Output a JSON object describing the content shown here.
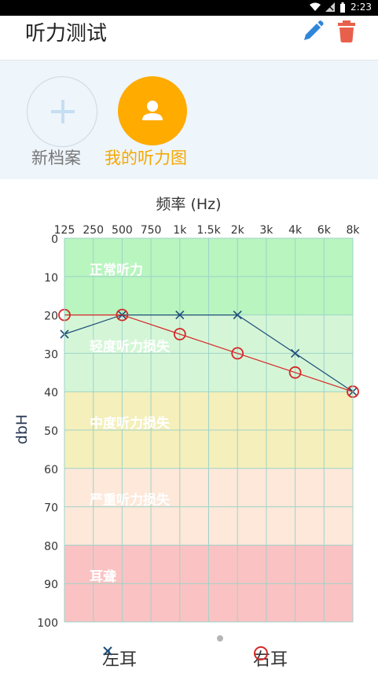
{
  "status": {
    "time": "2:23"
  },
  "header": {
    "title": "听力测试"
  },
  "profiles": {
    "new_label": "新档案",
    "mine_label": "我的听力图"
  },
  "colors": {
    "accent": "#ffab00",
    "edit": "#2f86d8",
    "delete": "#e8604c",
    "normal": "#b8f5bf",
    "mild": "#d4f6d7",
    "moderate": "#f4efbb",
    "severe": "#fde8da",
    "deaf": "#fbc2c3",
    "left_ear": "#1f4e79",
    "right_ear": "#d62728"
  },
  "chart_data": {
    "type": "line",
    "title": "频率 (Hz)",
    "ylabel": "dbH",
    "categories": [
      "125",
      "250",
      "500",
      "750",
      "1k",
      "1.5k",
      "2k",
      "3k",
      "4k",
      "6k",
      "8k"
    ],
    "ylim": [
      0,
      100
    ],
    "y_ticks": [
      0,
      10,
      20,
      30,
      40,
      50,
      60,
      70,
      80,
      90,
      100
    ],
    "y_reversed": true,
    "bands": [
      {
        "label": "正常听力",
        "from": 0,
        "to": 20
      },
      {
        "label": "轻度听力损失",
        "from": 20,
        "to": 40
      },
      {
        "label": "中度听力损失",
        "from": 40,
        "to": 60
      },
      {
        "label": "严重听力损失",
        "from": 60,
        "to": 80
      },
      {
        "label": "耳聋",
        "from": 80,
        "to": 100
      }
    ],
    "series": [
      {
        "name": "左耳",
        "marker": "x",
        "points": [
          [
            "125",
            25
          ],
          [
            "500",
            20
          ],
          [
            "1k",
            20
          ],
          [
            "2k",
            20
          ],
          [
            "4k",
            30
          ],
          [
            "8k",
            40
          ]
        ]
      },
      {
        "name": "右耳",
        "marker": "o",
        "points": [
          [
            "125",
            20
          ],
          [
            "500",
            20
          ],
          [
            "1k",
            25
          ],
          [
            "2k",
            30
          ],
          [
            "4k",
            35
          ],
          [
            "8k",
            40
          ]
        ]
      }
    ]
  }
}
